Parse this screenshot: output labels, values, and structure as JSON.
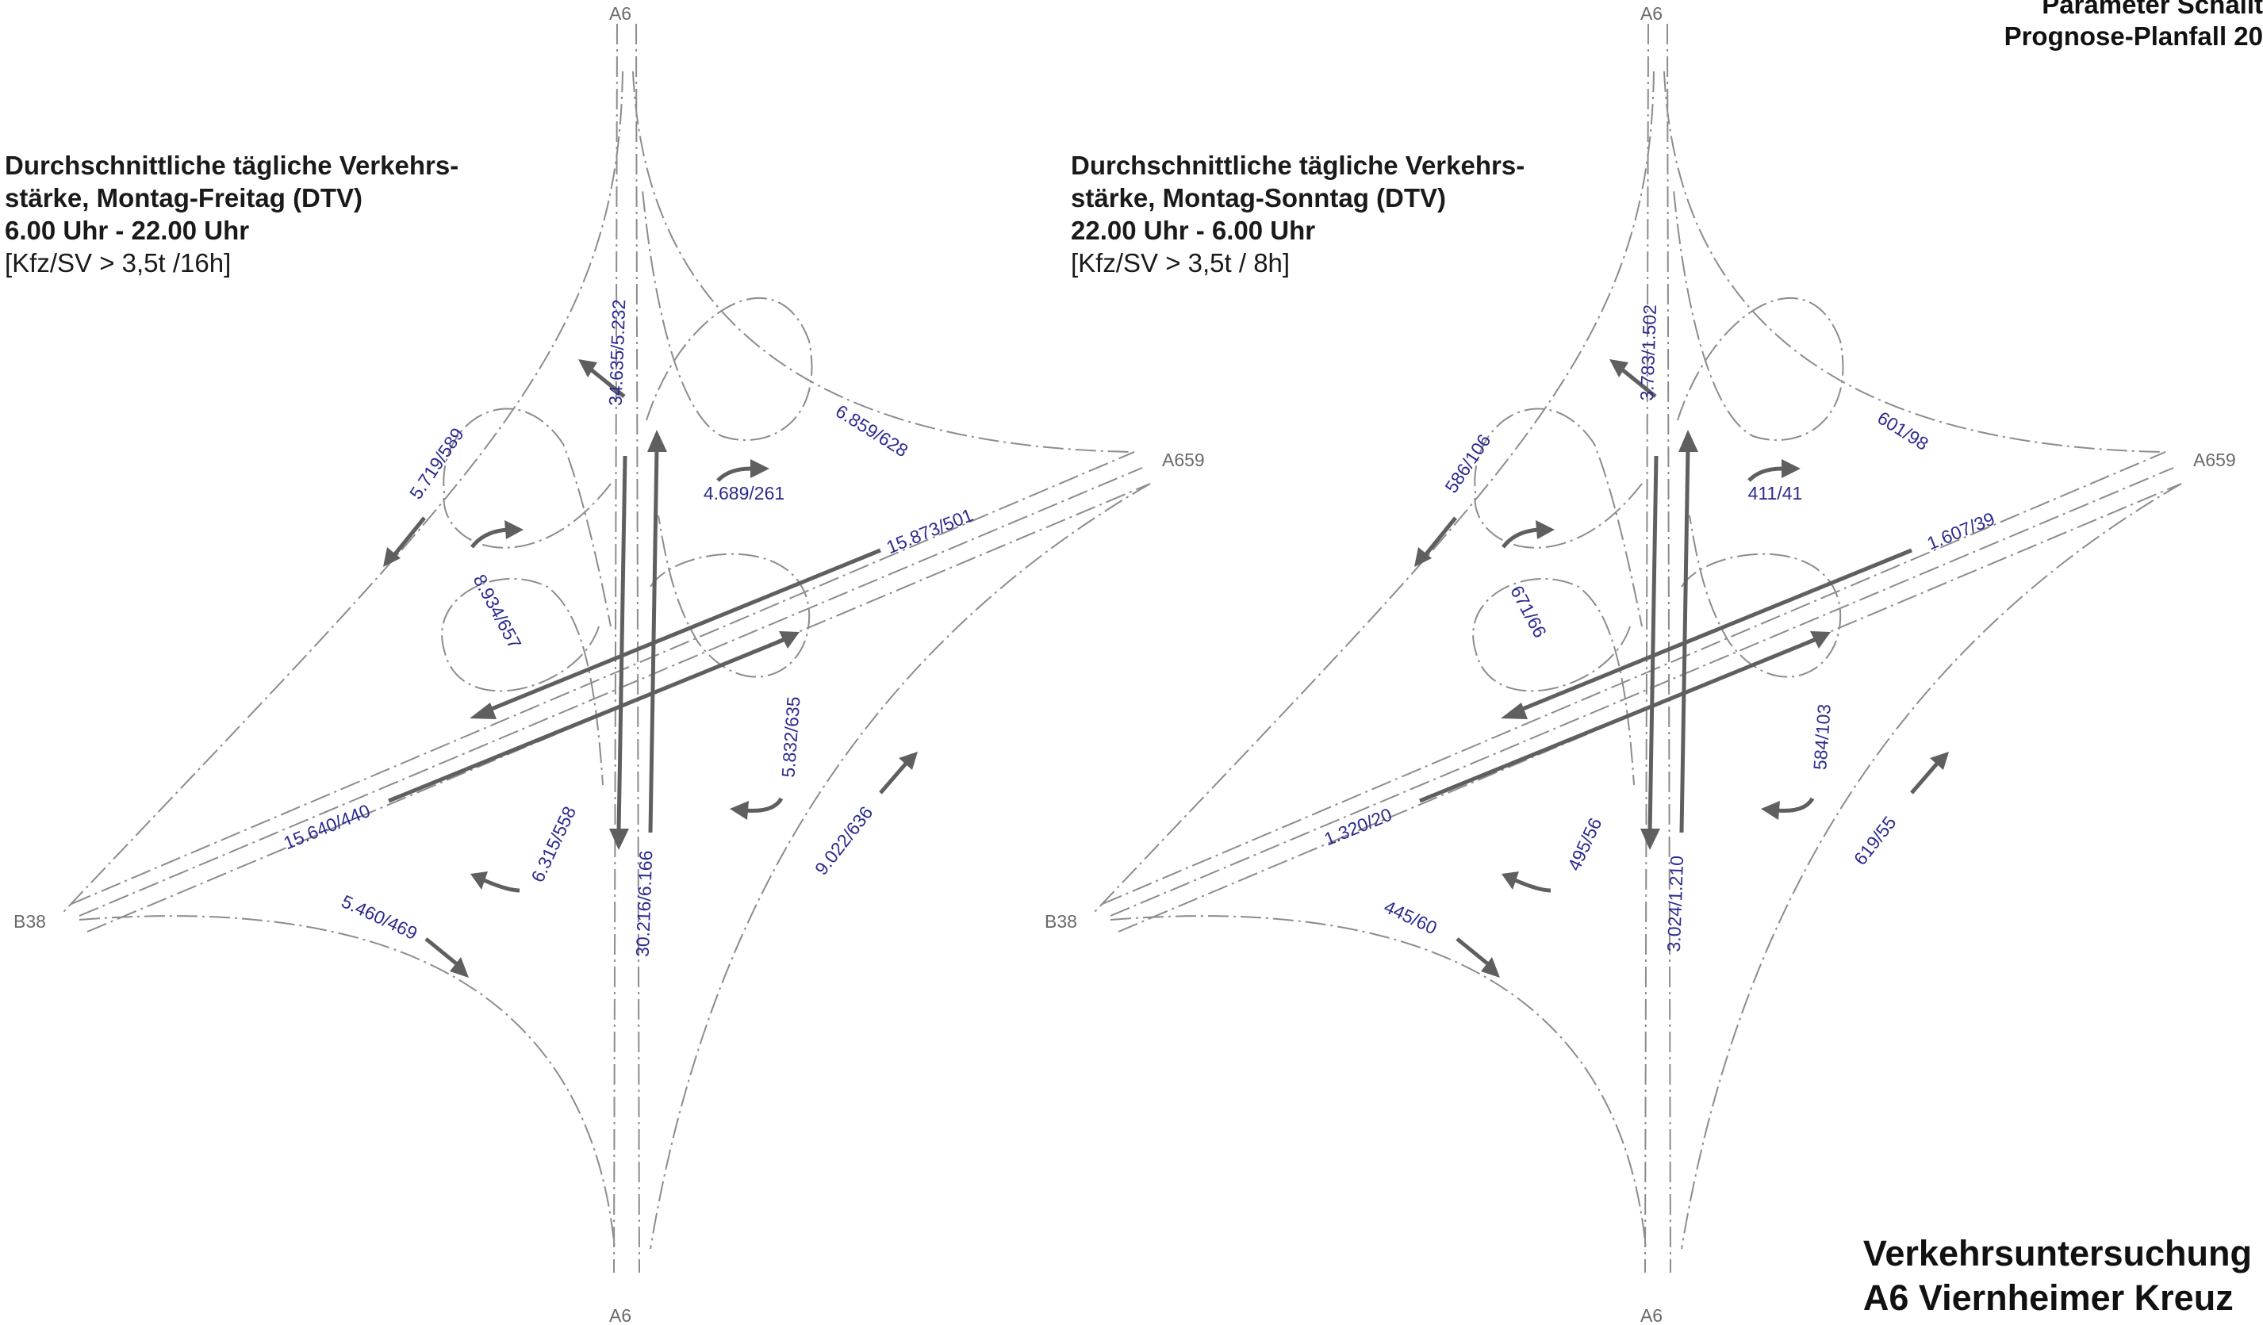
{
  "corner": {
    "line1": "Parameter Schallt",
    "line2": "Prognose-Planfall 20"
  },
  "title": {
    "line1": "Verkehrsuntersuchung",
    "line2": "A6 Viernheimer Kreuz"
  },
  "panels": [
    {
      "header": {
        "line1": "Durchschnittliche tägliche Verkehrs-",
        "line2": "stärke, Montag-Freitag (DTV)",
        "line3": "6.00 Uhr - 22.00 Uhr",
        "line4": "[Kfz/SV > 3,5t /16h]"
      },
      "roads": {
        "north": "A6",
        "south": "A6",
        "east": "A659",
        "west": "B38"
      },
      "flows": {
        "a6_south": "34.635/5.232",
        "a6_north": "30.216/6.166",
        "west_main": "15.873/501",
        "east_main": "15.640/440",
        "ramp_nw": "5.719/589",
        "ramp_ne": "6.859/628",
        "ramp_se": "9.022/636",
        "ramp_sw": "5.460/469",
        "loop_nw": "8.934/657",
        "loop_ne": "4.689/261",
        "loop_se": "5.832/635",
        "loop_sw": "6.315/558"
      }
    },
    {
      "header": {
        "line1": "Durchschnittliche tägliche Verkehrs-",
        "line2": "stärke, Montag-Sonntag (DTV)",
        "line3": "22.00 Uhr - 6.00 Uhr",
        "line4": "[Kfz/SV > 3,5t / 8h]"
      },
      "roads": {
        "north": "A6",
        "south": "A6",
        "east": "A659",
        "west": "B38"
      },
      "flows": {
        "a6_south": "3.783/1.502",
        "a6_north": "3.024/1.210",
        "west_main": "1.607/39",
        "east_main": "1.320/20",
        "ramp_nw": "586/106",
        "ramp_ne": "601/98",
        "ramp_se": "619/55",
        "ramp_sw": "445/60",
        "loop_nw": "671/66",
        "loop_ne": "411/41",
        "loop_se": "584/103",
        "loop_sw": "495/56"
      }
    }
  ]
}
